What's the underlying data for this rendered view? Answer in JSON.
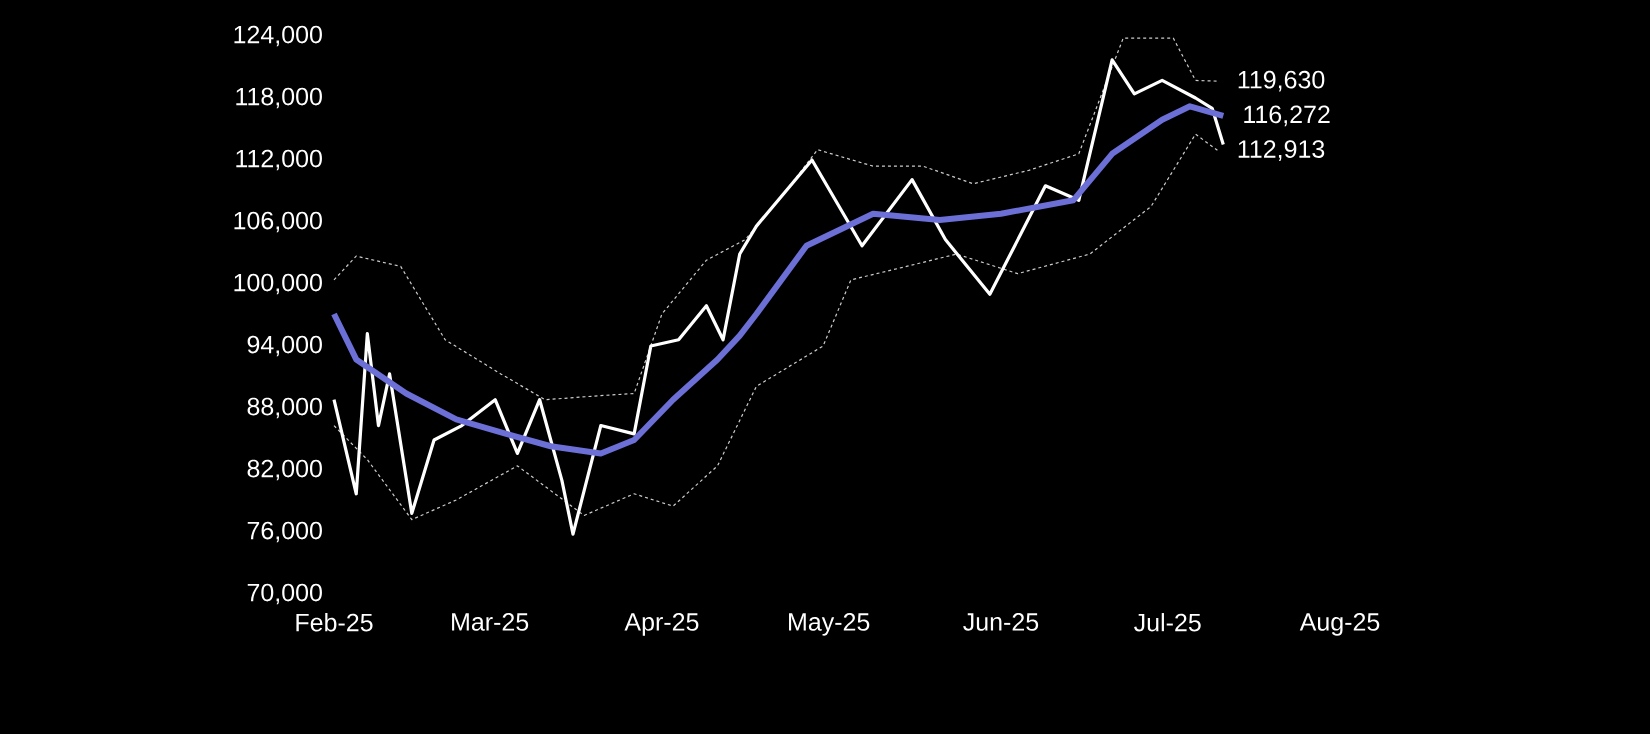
{
  "chart_data": {
    "type": "line",
    "xlim": [
      "2025-02-01",
      "2025-08-01"
    ],
    "xticks": [
      {
        "value": "2025-02-01",
        "label": "Feb-25"
      },
      {
        "value": "2025-03-01",
        "label": "Mar-25"
      },
      {
        "value": "2025-04-01",
        "label": "Apr-25"
      },
      {
        "value": "2025-05-01",
        "label": "May-25"
      },
      {
        "value": "2025-06-01",
        "label": "Jun-25"
      },
      {
        "value": "2025-07-01",
        "label": "Jul-25"
      },
      {
        "value": "2025-08-01",
        "label": "Aug-25"
      }
    ],
    "ylim": [
      70000,
      124000
    ],
    "yticks": [
      {
        "value": 70000,
        "label": "70,000"
      },
      {
        "value": 76000,
        "label": "76,000"
      },
      {
        "value": 82000,
        "label": "82,000"
      },
      {
        "value": 88000,
        "label": "88,000"
      },
      {
        "value": 94000,
        "label": "94,000"
      },
      {
        "value": 100000,
        "label": "100,000"
      },
      {
        "value": 106000,
        "label": "106,000"
      },
      {
        "value": 112000,
        "label": "112,000"
      },
      {
        "value": 118000,
        "label": "118,000"
      },
      {
        "value": 124000,
        "label": "124,000"
      }
    ],
    "grid": false,
    "marker": "none",
    "series": [
      {
        "color": "#cccccc",
        "line_style": "dashed",
        "x": [
          "2025-02-01",
          "2025-02-05",
          "2025-02-13",
          "2025-02-21",
          "2025-03-03",
          "2025-03-11",
          "2025-03-21",
          "2025-03-27",
          "2025-04-01",
          "2025-04-09",
          "2025-04-16",
          "2025-04-22",
          "2025-04-29",
          "2025-05-09",
          "2025-05-18",
          "2025-05-27",
          "2025-06-06",
          "2025-06-15",
          "2025-06-23",
          "2025-07-02",
          "2025-07-06",
          "2025-07-10"
        ],
        "values": [
          100400,
          102700,
          101700,
          94600,
          91300,
          88800,
          89200,
          89400,
          97100,
          102300,
          104300,
          108100,
          113000,
          111400,
          111400,
          109700,
          111000,
          112600,
          123800,
          123800,
          119700,
          119630
        ]
      },
      {
        "color": "#cccccc",
        "line_style": "dashed",
        "x": [
          "2025-02-01",
          "2025-02-07",
          "2025-02-15",
          "2025-02-23",
          "2025-03-06",
          "2025-03-18",
          "2025-03-27",
          "2025-04-03",
          "2025-04-11",
          "2025-04-18",
          "2025-04-30",
          "2025-05-05",
          "2025-05-15",
          "2025-05-24",
          "2025-06-04",
          "2025-06-17",
          "2025-06-28",
          "2025-07-06",
          "2025-07-10"
        ],
        "values": [
          86300,
          83000,
          77200,
          79100,
          82400,
          77600,
          79700,
          78500,
          82400,
          90100,
          94000,
          100400,
          101700,
          102900,
          101000,
          102900,
          107500,
          114500,
          112913
        ]
      },
      {
        "color": "#ffffff",
        "line_style": "solid",
        "x": [
          "2025-02-01",
          "2025-02-05",
          "2025-02-07",
          "2025-02-09",
          "2025-02-11",
          "2025-02-15",
          "2025-02-19",
          "2025-02-24",
          "2025-03-02",
          "2025-03-06",
          "2025-03-10",
          "2025-03-14",
          "2025-03-16",
          "2025-03-21",
          "2025-03-27",
          "2025-03-30",
          "2025-04-04",
          "2025-04-09",
          "2025-04-12",
          "2025-04-15",
          "2025-04-18",
          "2025-04-28",
          "2025-05-07",
          "2025-05-16",
          "2025-05-22",
          "2025-05-30",
          "2025-06-09",
          "2025-06-15",
          "2025-06-21",
          "2025-06-25",
          "2025-06-30",
          "2025-07-06",
          "2025-07-09",
          "2025-07-11"
        ],
        "values": [
          88800,
          79700,
          95200,
          86300,
          91300,
          77800,
          84900,
          86300,
          88800,
          83600,
          88800,
          81000,
          75800,
          86300,
          85500,
          94000,
          94600,
          97900,
          94600,
          102900,
          105600,
          112000,
          103700,
          110100,
          104300,
          99000,
          109500,
          108100,
          121700,
          118400,
          119700,
          118000,
          117000,
          113500
        ]
      },
      {
        "color": "#6b6fd6",
        "line_style": "solid",
        "x": [
          "2025-02-01",
          "2025-02-05",
          "2025-02-14",
          "2025-02-23",
          "2025-03-04",
          "2025-03-12",
          "2025-03-21",
          "2025-03-27",
          "2025-04-03",
          "2025-04-11",
          "2025-04-15",
          "2025-04-18",
          "2025-04-27",
          "2025-05-09",
          "2025-05-21",
          "2025-06-01",
          "2025-06-14",
          "2025-06-21",
          "2025-06-30",
          "2025-07-05",
          "2025-07-11"
        ],
        "values": [
          97100,
          92700,
          89400,
          86900,
          85500,
          84300,
          83600,
          84900,
          88800,
          92700,
          95000,
          97100,
          103700,
          106800,
          106200,
          106800,
          108100,
          112600,
          115900,
          117200,
          116272
        ]
      }
    ],
    "annotations": [
      {
        "text": "119,630",
        "x": "2025-07-10",
        "y": 119630
      },
      {
        "text": "116,272",
        "x": "2025-07-11",
        "y": 116272
      },
      {
        "text": "112,913",
        "x": "2025-07-10",
        "y": 112913
      }
    ]
  }
}
